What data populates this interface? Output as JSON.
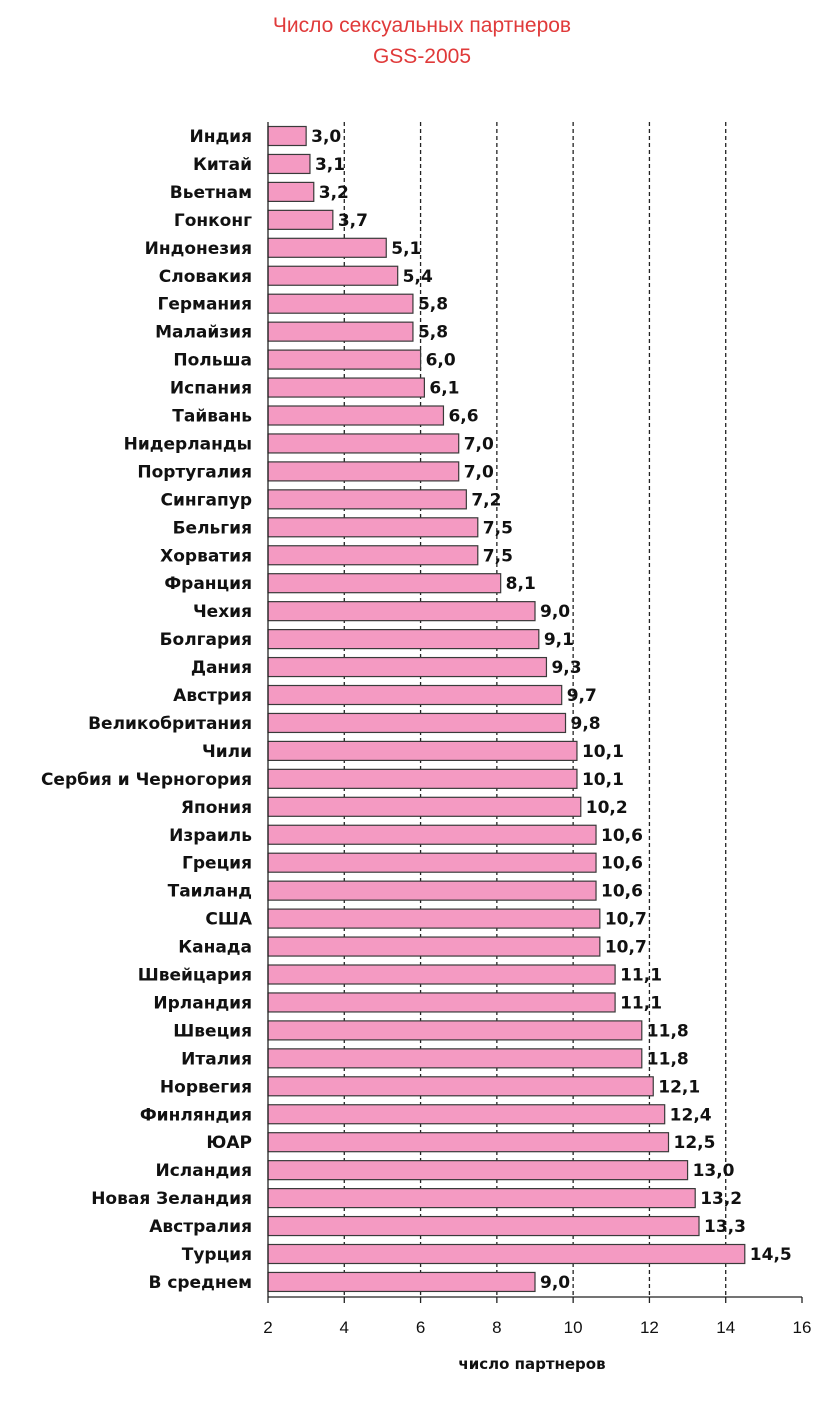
{
  "chart_data": {
    "type": "bar",
    "orientation": "horizontal",
    "title": "Число сексуальных партнеров",
    "subtitle": "GSS-2005",
    "xlabel": "число партнеров",
    "ylabel": "",
    "xlim": [
      2,
      16
    ],
    "xticks": [
      2,
      4,
      6,
      8,
      10,
      12,
      14,
      16
    ],
    "grid": "vertical dashed",
    "bar_color": "#f49ac2",
    "bar_border": "#3a3a3a",
    "title_color": "#e03a3a",
    "categories": [
      "Индия",
      "Китай",
      "Вьетнам",
      "Гонконг",
      "Индонезия",
      "Словакия",
      "Германия",
      "Малайзия",
      "Польша",
      "Испания",
      "Тайвань",
      "Нидерланды",
      "Португалия",
      "Сингапур",
      "Бельгия",
      "Хорватия",
      "Франция",
      "Чехия",
      "Болгария",
      "Дания",
      "Австрия",
      "Великобритания",
      "Чили",
      "Сербия и Черногория",
      "Япония",
      "Израиль",
      "Греция",
      "Таиланд",
      "США",
      "Канада",
      "Швейцария",
      "Ирландия",
      "Швеция",
      "Италия",
      "Норвегия",
      "Финляндия",
      "ЮАР",
      "Исландия",
      "Новая Зеландия",
      "Австралия",
      "Турция",
      "В среднем"
    ],
    "values": [
      3.0,
      3.1,
      3.2,
      3.7,
      5.1,
      5.4,
      5.8,
      5.8,
      6.0,
      6.1,
      6.6,
      7.0,
      7.0,
      7.2,
      7.5,
      7.5,
      8.1,
      9.0,
      9.1,
      9.3,
      9.7,
      9.8,
      10.1,
      10.1,
      10.2,
      10.6,
      10.6,
      10.6,
      10.7,
      10.7,
      11.1,
      11.1,
      11.8,
      11.8,
      12.1,
      12.4,
      12.5,
      13.0,
      13.2,
      13.3,
      14.5,
      9.0
    ],
    "value_labels": [
      "3,0",
      "3,1",
      "3,2",
      "3,7",
      "5,1",
      "5,4",
      "5,8",
      "5,8",
      "6,0",
      "6,1",
      "6,6",
      "7,0",
      "7,0",
      "7,2",
      "7,5",
      "7,5",
      "8,1",
      "9,0",
      "9,1",
      "9,3",
      "9,7",
      "9,8",
      "10,1",
      "10,1",
      "10,2",
      "10,6",
      "10,6",
      "10,6",
      "10,7",
      "10,7",
      "11,1",
      "11,1",
      "11,8",
      "11,8",
      "12,1",
      "12,4",
      "12,5",
      "13,0",
      "13,2",
      "13,3",
      "14,5",
      "9,0"
    ]
  }
}
